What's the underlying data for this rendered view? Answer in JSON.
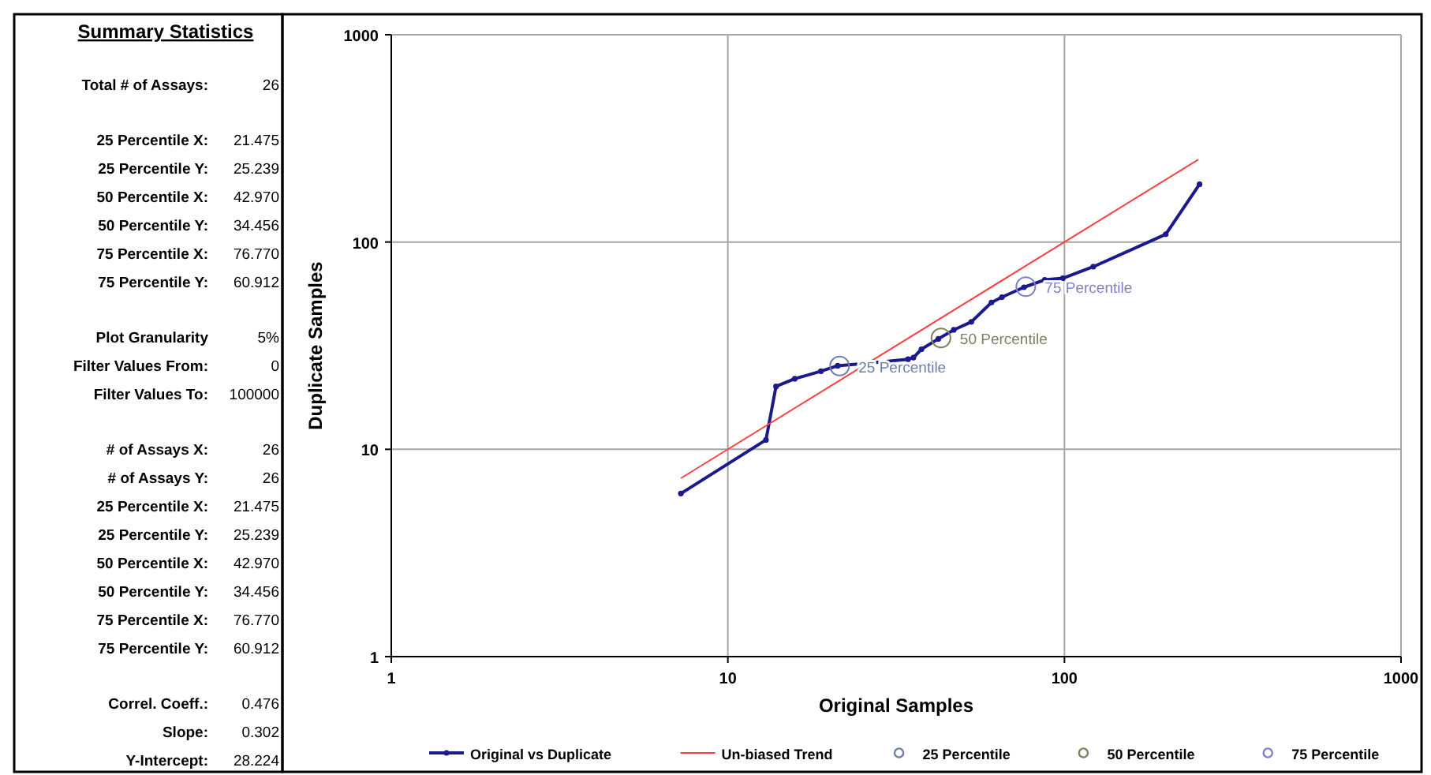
{
  "chart_data": [
    {
      "type": "other",
      "title": "Summary Statistics",
      "annotations": [
        "Total # of Assays:",
        "26",
        "25 Percentile X:",
        "21.475",
        "25 Percentile Y:",
        "25.239",
        "50 Percentile X:",
        "42.970",
        "50 Percentile Y:",
        "34.456",
        "75 Percentile X:",
        "76.770",
        "75 Percentile Y:",
        "60.912",
        "Plot Granularity",
        "5%",
        "Filter Values From:",
        "0",
        "Filter Values To:",
        "100000",
        "# of Assays X:",
        "26",
        "# of Assays Y:",
        "26",
        "25 Percentile X:",
        "21.475",
        "25 Percentile Y:",
        "25.239",
        "50 Percentile X:",
        "42.970",
        "50 Percentile Y:",
        "34.456",
        "75 Percentile X:",
        "76.770",
        "75 Percentile Y:",
        "60.912",
        "Correl. Coeff.:",
        "0.476",
        "Slope:",
        "0.302",
        "Y-Intercept:",
        "28.224"
      ]
    },
    {
      "type": "line",
      "xlabel": "Original Samples",
      "ylabel": "Duplicate Samples",
      "log": "xy",
      "xlim": [
        1,
        1000
      ],
      "ylim": [
        1,
        1000
      ],
      "xticks": [
        1,
        10,
        100,
        1000
      ],
      "yticks": [
        1,
        10,
        100,
        1000
      ],
      "grid": true,
      "legend": "bottom",
      "series": [
        {
          "name": "Original vs Duplicate",
          "color": "#1a1a8c",
          "marker": "circle",
          "x": [
            7.25,
            12.98,
            13.9,
            15.8,
            18.9,
            21.2,
            26.4,
            34.3,
            35.6,
            37.6,
            42.2,
            46.9,
            52.9,
            60.7,
            65.2,
            75.8,
            87.4,
            98.9,
            121.8,
            200,
            252
          ],
          "values": [
            6.12,
            11.1,
            20.1,
            21.9,
            23.8,
            25.3,
            26.1,
            27.2,
            27.7,
            30.4,
            34.1,
            37.7,
            41.2,
            51.1,
            54.2,
            60.5,
            65.7,
            66.9,
            76.0,
            109,
            190
          ]
        },
        {
          "name": "Un-biased Trend",
          "color": "#ff4040",
          "marker": "none",
          "x": [
            7.25,
            250
          ],
          "values": [
            7.25,
            250
          ]
        },
        {
          "name": "25 Percentile",
          "type": "scatter",
          "color": "#6b7fa8",
          "marker": "circle",
          "x": [
            21.475
          ],
          "values": [
            25.239
          ]
        },
        {
          "name": "50 Percentile",
          "type": "scatter",
          "color": "#7f7f5f",
          "marker": "circle",
          "x": [
            42.97
          ],
          "values": [
            34.456
          ]
        },
        {
          "name": "75 Percentile",
          "type": "scatter",
          "color": "#8080c8",
          "marker": "circle",
          "x": [
            76.77
          ],
          "values": [
            60.912
          ]
        }
      ],
      "annotations": [
        {
          "text": "25 Percentile",
          "x": 21.475,
          "y": 25.239
        },
        {
          "text": "50 Percentile",
          "x": 42.97,
          "y": 34.456
        },
        {
          "text": "75 Percentile",
          "x": 76.77,
          "y": 60.912
        }
      ]
    }
  ]
}
